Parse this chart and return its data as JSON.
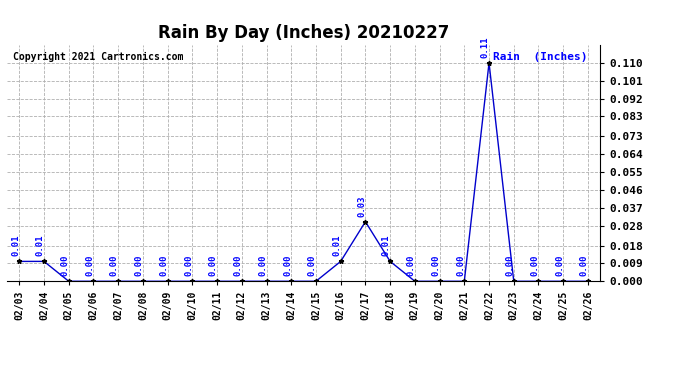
{
  "title": "Rain By Day (Inches) 20210227",
  "copyright": "Copyright 2021 Cartronics.com",
  "legend_label": "Rain  (Inches)",
  "dates": [
    "02/03",
    "02/04",
    "02/05",
    "02/06",
    "02/07",
    "02/08",
    "02/09",
    "02/10",
    "02/11",
    "02/12",
    "02/13",
    "02/14",
    "02/15",
    "02/16",
    "02/17",
    "02/18",
    "02/19",
    "02/20",
    "02/21",
    "02/22",
    "02/23",
    "02/24",
    "02/25",
    "02/26"
  ],
  "values": [
    0.01,
    0.01,
    0.0,
    0.0,
    0.0,
    0.0,
    0.0,
    0.0,
    0.0,
    0.0,
    0.0,
    0.0,
    0.0,
    0.01,
    0.03,
    0.01,
    0.0,
    0.0,
    0.0,
    0.11,
    0.0,
    0.0,
    0.0,
    0.0
  ],
  "line_color": "#0000cc",
  "marker_color": "#000000",
  "label_color": "#0000ff",
  "background_color": "#ffffff",
  "grid_color": "#b0b0b0",
  "ylim": [
    0.0,
    0.119
  ],
  "yticks": [
    0.0,
    0.009,
    0.018,
    0.028,
    0.037,
    0.046,
    0.055,
    0.064,
    0.073,
    0.083,
    0.092,
    0.101,
    0.11
  ],
  "title_fontsize": 12,
  "label_fontsize": 6.5,
  "copyright_fontsize": 7,
  "legend_fontsize": 8,
  "ytick_fontsize": 8
}
